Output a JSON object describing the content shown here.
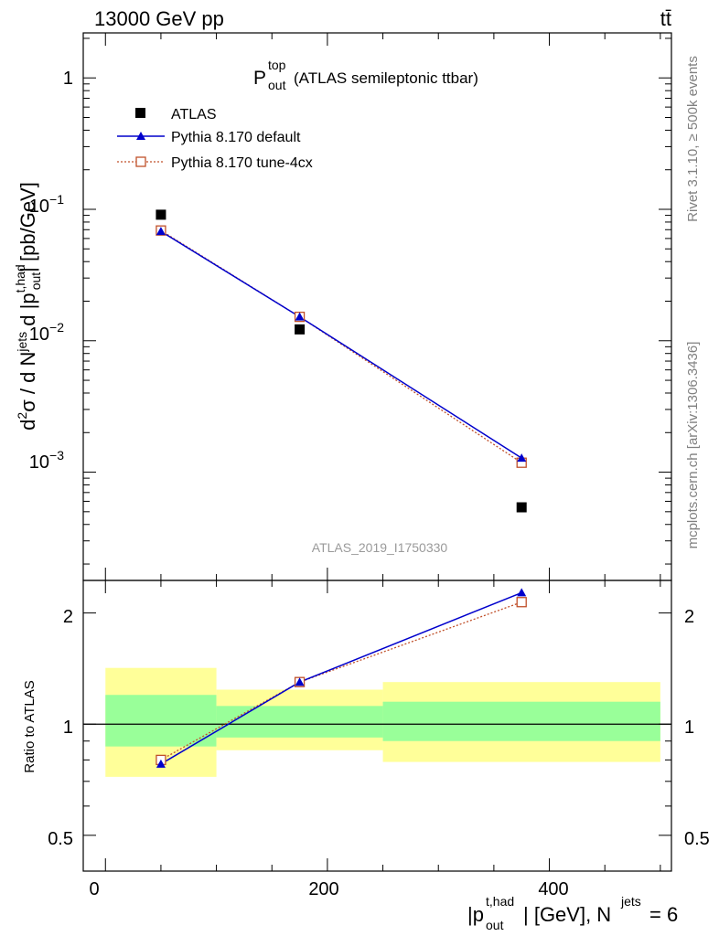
{
  "header": {
    "energy_label": "13000 GeV pp",
    "process_label": "tt̄"
  },
  "side_labels": {
    "rivet": "Rivet 3.1.10, ≥ 500k events",
    "mcplots": "mcplots.cern.ch [arXiv:1306.3436]"
  },
  "colors": {
    "atlas": "#000000",
    "pythia_default": "#0000cc",
    "pythia_tune": "#c0502a",
    "band_inner": "#99ff99",
    "band_outer": "#ffff99",
    "analysis_label": "#9a9a9a"
  },
  "chart_data": [
    {
      "type": "scatter",
      "panel": "main",
      "title": {
        "symbol": "P",
        "sup": "top",
        "sub": "out",
        "text": "(ATLAS semileptonic ttbar)"
      },
      "ylabel": "d²σ / d N^jets d |p_out^t,had| [pb/GeV]",
      "yscale": "log",
      "ylim": [
        0.00015,
        2.2
      ],
      "xlim": [
        -20,
        510
      ],
      "ytick_labels": [
        "1",
        "10⁻¹",
        "10⁻²",
        "10⁻³"
      ],
      "analysis_id": "ATLAS_2019_I1750330",
      "legend": [
        "ATLAS",
        "Pythia 8.170 default",
        "Pythia 8.170 tune-4cx"
      ],
      "series": [
        {
          "name": "ATLAS",
          "x": [
            50,
            175,
            375
          ],
          "values": [
            0.091,
            0.0122,
            0.00054
          ]
        },
        {
          "name": "Pythia 8.170 default",
          "x": [
            50,
            175,
            375
          ],
          "values": [
            0.068,
            0.0152,
            0.00128
          ]
        },
        {
          "name": "Pythia 8.170 tune-4cx",
          "x": [
            50,
            175,
            375
          ],
          "values": [
            0.069,
            0.0152,
            0.00118
          ]
        }
      ]
    },
    {
      "type": "line",
      "panel": "ratio",
      "ylabel": "Ratio to ATLAS",
      "yscale": "log",
      "ylim": [
        0.4,
        2.45
      ],
      "xlim": [
        -20,
        510
      ],
      "ytick_labels": [
        "0.5",
        "1",
        "2"
      ],
      "xtick_labels": [
        "0",
        "200",
        "400"
      ],
      "xlabel": {
        "text1": "|p",
        "sup": "t,had",
        "sub": "out",
        "text2": "| [GeV], N",
        "sup2": "jets",
        "text3": " = 6"
      },
      "uncertainty_bands": [
        {
          "x_low": 0,
          "x_high": 100,
          "inner": [
            0.87,
            1.2
          ],
          "outer": [
            0.72,
            1.42
          ]
        },
        {
          "x_low": 100,
          "x_high": 250,
          "inner": [
            0.92,
            1.12
          ],
          "outer": [
            0.85,
            1.24
          ]
        },
        {
          "x_low": 250,
          "x_high": 500,
          "inner": [
            0.9,
            1.15
          ],
          "outer": [
            0.79,
            1.3
          ]
        }
      ],
      "series": [
        {
          "name": "Pythia 8.170 default",
          "x": [
            50,
            175,
            375
          ],
          "values": [
            0.78,
            1.3,
            2.27
          ]
        },
        {
          "name": "Pythia 8.170 tune-4cx",
          "x": [
            50,
            175,
            375
          ],
          "values": [
            0.8,
            1.3,
            2.14
          ]
        }
      ]
    }
  ]
}
